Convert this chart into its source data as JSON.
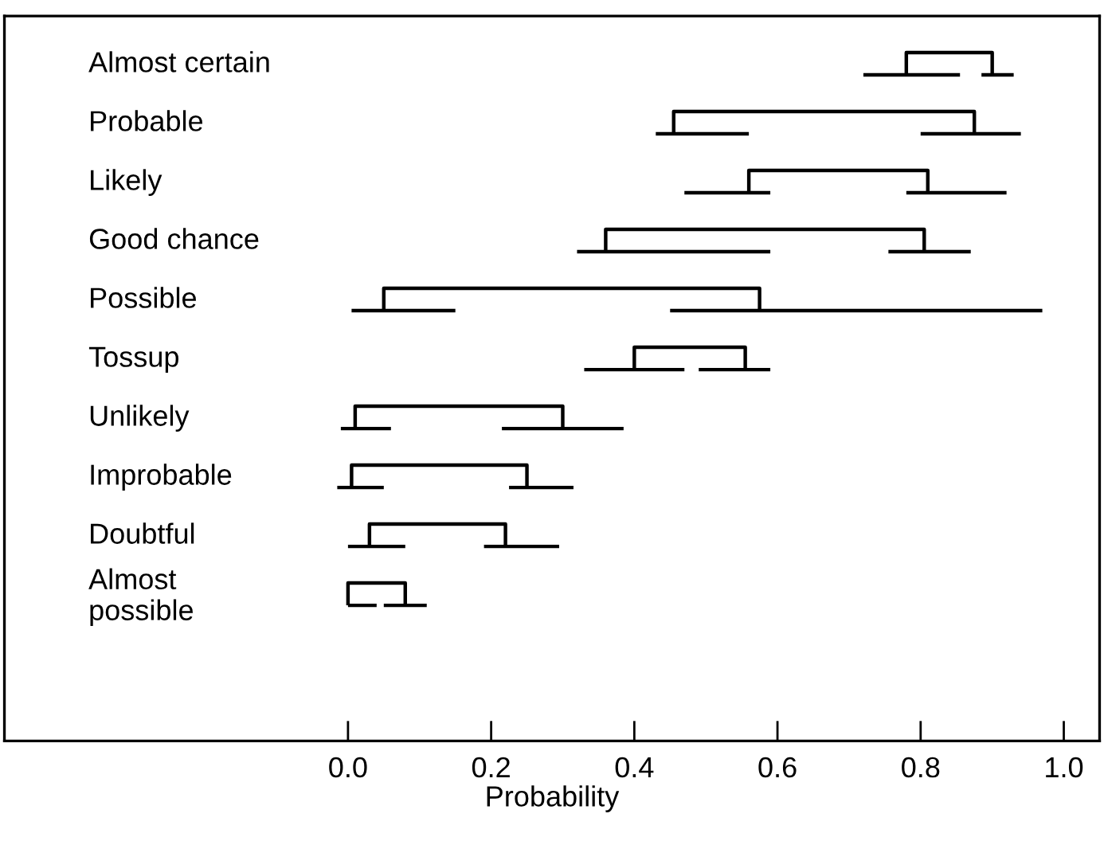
{
  "chart_data": {
    "type": "bar",
    "orientation": "horizontal",
    "xlabel": "Probability",
    "categories": [
      "Almost certain",
      "Probable",
      "Likely",
      "Good chance",
      "Possible",
      "Tossup",
      "Unlikely",
      "Improbable",
      "Doubtful",
      "Almost\npossible"
    ],
    "xlim": [
      -0.48,
      1.05
    ],
    "xticks": [
      {
        "value": 0,
        "label": "0.0"
      },
      {
        "value": 0.2,
        "label": "0.2"
      },
      {
        "value": 0.4,
        "label": "0.4"
      },
      {
        "value": 0.6,
        "label": "0.6"
      },
      {
        "value": 0.8,
        "label": "0.8"
      },
      {
        "value": 1,
        "label": "1.0"
      }
    ],
    "grid": false,
    "legend": false,
    "series": [
      {
        "type": "bar",
        "color": "#000000",
        "base": [
          0.78,
          0.455,
          0.56,
          0.36,
          0.05,
          0.4,
          0.01,
          0.005,
          0.03,
          0.0
        ],
        "values": [
          0.12,
          0.42,
          0.25,
          0.445,
          0.525,
          0.155,
          0.29,
          0.245,
          0.19,
          0.08
        ]
      },
      {
        "color": "#000000",
        "base": [
          0.72,
          0.43,
          0.47,
          0.32,
          0.005,
          0.33,
          -0.01,
          -0.015,
          0.0,
          0.0
        ],
        "values": [
          0.135,
          0.13,
          0.12,
          0.27,
          0.145,
          0.14,
          0.07,
          0.065,
          0.08,
          0.04
        ]
      },
      {
        "color": "#000000",
        "base": [
          0.885,
          0.8,
          0.78,
          0.755,
          0.45,
          0.49,
          0.215,
          0.225,
          0.19,
          0.05
        ],
        "values": [
          0.045,
          0.14,
          0.14,
          0.115,
          0.52,
          0.1,
          0.17,
          0.09,
          0.105,
          0.06
        ]
      }
    ]
  }
}
